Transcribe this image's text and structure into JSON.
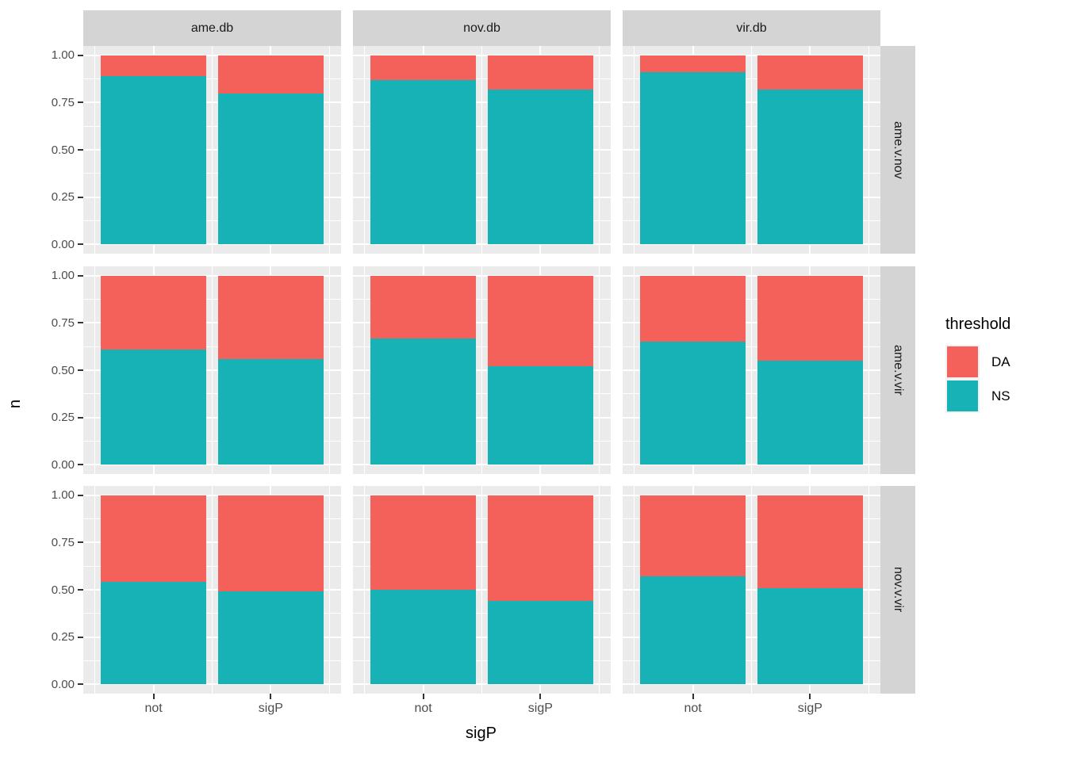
{
  "chart_data": {
    "type": "bar",
    "stacked": true,
    "title": "",
    "xlabel": "sigP",
    "ylabel": "n",
    "categories": [
      "not",
      "sigP"
    ],
    "ylim": [
      0,
      1
    ],
    "y_ticks": [
      "1.00",
      "0.75",
      "0.50",
      "0.25",
      "0.00"
    ],
    "y_tick_values": [
      1.0,
      0.75,
      0.5,
      0.25,
      0.0
    ],
    "grid": "on",
    "legend_position": "right",
    "facet": {
      "cols": [
        "ame.db",
        "nov.db",
        "vir.db"
      ],
      "rows": [
        "ame.v.nov",
        "ame.v.vir",
        "nov.v.vir"
      ]
    },
    "legend": {
      "title": "threshold",
      "entries": [
        {
          "label": "DA",
          "color": "#F4605A"
        },
        {
          "label": "NS",
          "color": "#17B2B5"
        }
      ]
    },
    "panels": [
      {
        "row": "ame.v.nov",
        "col": "ame.db",
        "bars": [
          {
            "x": "not",
            "NS": 0.89,
            "DA": 0.11
          },
          {
            "x": "sigP",
            "NS": 0.8,
            "DA": 0.2
          }
        ]
      },
      {
        "row": "ame.v.nov",
        "col": "nov.db",
        "bars": [
          {
            "x": "not",
            "NS": 0.87,
            "DA": 0.13
          },
          {
            "x": "sigP",
            "NS": 0.82,
            "DA": 0.18
          }
        ]
      },
      {
        "row": "ame.v.nov",
        "col": "vir.db",
        "bars": [
          {
            "x": "not",
            "NS": 0.91,
            "DA": 0.09
          },
          {
            "x": "sigP",
            "NS": 0.82,
            "DA": 0.18
          }
        ]
      },
      {
        "row": "ame.v.vir",
        "col": "ame.db",
        "bars": [
          {
            "x": "not",
            "NS": 0.61,
            "DA": 0.39
          },
          {
            "x": "sigP",
            "NS": 0.56,
            "DA": 0.44
          }
        ]
      },
      {
        "row": "ame.v.vir",
        "col": "nov.db",
        "bars": [
          {
            "x": "not",
            "NS": 0.67,
            "DA": 0.33
          },
          {
            "x": "sigP",
            "NS": 0.52,
            "DA": 0.48
          }
        ]
      },
      {
        "row": "ame.v.vir",
        "col": "vir.db",
        "bars": [
          {
            "x": "not",
            "NS": 0.65,
            "DA": 0.35
          },
          {
            "x": "sigP",
            "NS": 0.55,
            "DA": 0.45
          }
        ]
      },
      {
        "row": "nov.v.vir",
        "col": "ame.db",
        "bars": [
          {
            "x": "not",
            "NS": 0.54,
            "DA": 0.46
          },
          {
            "x": "sigP",
            "NS": 0.49,
            "DA": 0.51
          }
        ]
      },
      {
        "row": "nov.v.vir",
        "col": "nov.db",
        "bars": [
          {
            "x": "not",
            "NS": 0.5,
            "DA": 0.5
          },
          {
            "x": "sigP",
            "NS": 0.44,
            "DA": 0.56
          }
        ]
      },
      {
        "row": "nov.v.vir",
        "col": "vir.db",
        "bars": [
          {
            "x": "not",
            "NS": 0.57,
            "DA": 0.43
          },
          {
            "x": "sigP",
            "NS": 0.51,
            "DA": 0.49
          }
        ]
      }
    ],
    "colors": {
      "DA": "#F4605A",
      "NS": "#17B2B5",
      "panel_background": "#EBEBEB",
      "strip_background": "#D4D4D4",
      "gridline": "#FFFFFF",
      "tick_text": "#4D4D4D",
      "strip_text": "#1A1A1A"
    }
  }
}
